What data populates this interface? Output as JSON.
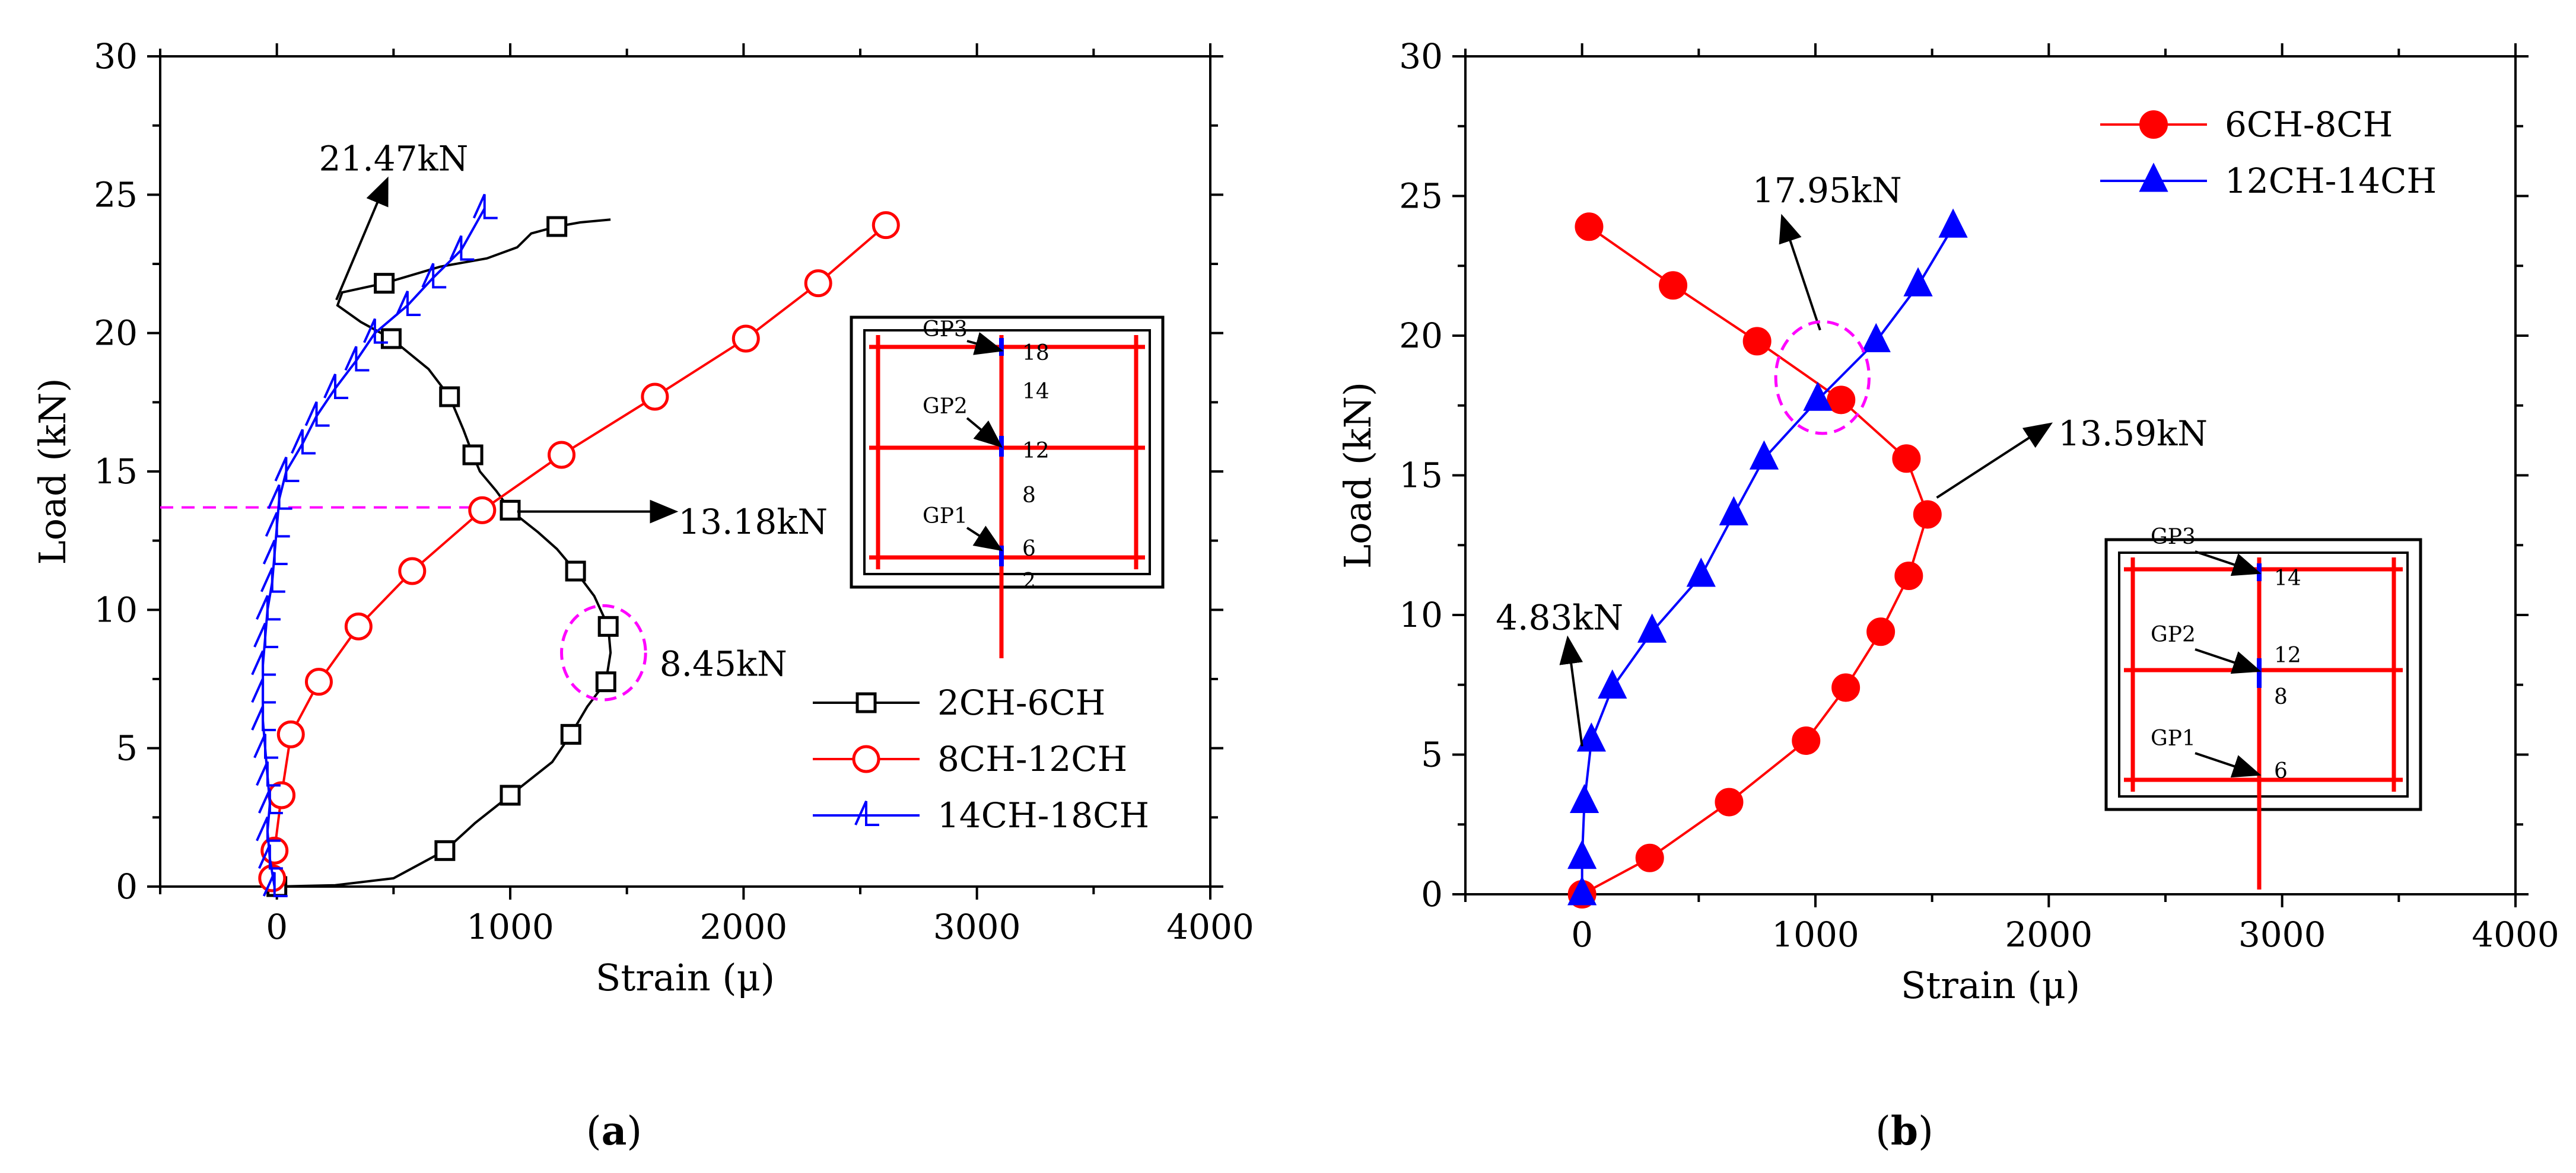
{
  "chart_data": [
    {
      "type": "line",
      "panel_label": "(a)",
      "panel_letter": "a",
      "xlabel": "Strain (μ)",
      "ylabel": "Load (kN)",
      "xlim": [
        -500,
        4000
      ],
      "ylim": [
        0,
        30
      ],
      "xticks": [
        0,
        1000,
        2000,
        3000,
        4000
      ],
      "yticks": [
        0,
        5,
        10,
        15,
        20,
        25,
        30
      ],
      "legend_position": "bottom-right",
      "series": [
        {
          "name": "2CH-6CH",
          "color": "#000000",
          "marker": "square",
          "points": [
            [
              0,
              0
            ],
            [
              250,
              0.05
            ],
            [
              500,
              0.3
            ],
            [
              720,
              1.3
            ],
            [
              850,
              2.3
            ],
            [
              1000,
              3.3
            ],
            [
              1180,
              4.5
            ],
            [
              1260,
              5.5
            ],
            [
              1330,
              6.5
            ],
            [
              1410,
              7.4
            ],
            [
              1430,
              8.45
            ],
            [
              1420,
              9.4
            ],
            [
              1360,
              10.5
            ],
            [
              1280,
              11.4
            ],
            [
              1200,
              12.2
            ],
            [
              1120,
              12.8
            ],
            [
              1000,
              13.6
            ],
            [
              940,
              14.3
            ],
            [
              870,
              15
            ],
            [
              840,
              15.6
            ],
            [
              800,
              16.5
            ],
            [
              740,
              17.7
            ],
            [
              650,
              18.7
            ],
            [
              490,
              19.8
            ],
            [
              360,
              20.4
            ],
            [
              260,
              21.0
            ],
            [
              280,
              21.47
            ],
            [
              460,
              21.8
            ],
            [
              700,
              22.4
            ],
            [
              900,
              22.7
            ],
            [
              1030,
              23.1
            ],
            [
              1090,
              23.6
            ],
            [
              1200,
              23.85
            ],
            [
              1300,
              24.0
            ],
            [
              1430,
              24.1
            ]
          ],
          "marker_points": [
            [
              0,
              0
            ],
            [
              720,
              1.3
            ],
            [
              1000,
              3.3
            ],
            [
              1260,
              5.5
            ],
            [
              1410,
              7.4
            ],
            [
              1420,
              9.4
            ],
            [
              1280,
              11.4
            ],
            [
              1000,
              13.6
            ],
            [
              840,
              15.6
            ],
            [
              740,
              17.7
            ],
            [
              490,
              19.8
            ],
            [
              460,
              21.8
            ],
            [
              1200,
              23.85
            ]
          ]
        },
        {
          "name": "8CH-12CH",
          "color": "#ff0000",
          "marker": "circle",
          "points": [
            [
              -20,
              0.3
            ],
            [
              -10,
              1.3
            ],
            [
              20,
              3.3
            ],
            [
              60,
              5.5
            ],
            [
              180,
              7.4
            ],
            [
              350,
              9.4
            ],
            [
              580,
              11.4
            ],
            [
              880,
              13.6
            ],
            [
              1220,
              15.6
            ],
            [
              1620,
              17.7
            ],
            [
              2010,
              19.8
            ],
            [
              2320,
              21.8
            ],
            [
              2610,
              23.9
            ]
          ],
          "marker_points": [
            [
              -20,
              0.3
            ],
            [
              -10,
              1.3
            ],
            [
              20,
              3.3
            ],
            [
              60,
              5.5
            ],
            [
              180,
              7.4
            ],
            [
              350,
              9.4
            ],
            [
              580,
              11.4
            ],
            [
              880,
              13.6
            ],
            [
              1220,
              15.6
            ],
            [
              1620,
              17.7
            ],
            [
              2010,
              19.8
            ],
            [
              2320,
              21.8
            ],
            [
              2610,
              23.9
            ]
          ]
        },
        {
          "name": "14CH-18CH",
          "color": "#0000ff",
          "marker": "tri-right",
          "points": [
            [
              -10,
              0
            ],
            [
              -30,
              1
            ],
            [
              -40,
              2
            ],
            [
              -30,
              3
            ],
            [
              -40,
              4
            ],
            [
              -50,
              5
            ],
            [
              -60,
              6
            ],
            [
              -60,
              7
            ],
            [
              -60,
              8
            ],
            [
              -50,
              9
            ],
            [
              -40,
              10
            ],
            [
              -20,
              11
            ],
            [
              -10,
              12
            ],
            [
              0,
              13
            ],
            [
              10,
              14
            ],
            [
              40,
              15
            ],
            [
              110,
              16
            ],
            [
              170,
              17
            ],
            [
              250,
              18
            ],
            [
              340,
              19
            ],
            [
              420,
              20
            ],
            [
              560,
              21
            ],
            [
              670,
              22
            ],
            [
              790,
              23
            ],
            [
              890,
              24.5
            ]
          ],
          "marker_points": [
            [
              -10,
              0
            ],
            [
              -30,
              1
            ],
            [
              -40,
              2
            ],
            [
              -30,
              3
            ],
            [
              -40,
              4
            ],
            [
              -50,
              5
            ],
            [
              -60,
              6
            ],
            [
              -60,
              7
            ],
            [
              -60,
              8
            ],
            [
              -50,
              9
            ],
            [
              -40,
              10
            ],
            [
              -20,
              11
            ],
            [
              -10,
              12
            ],
            [
              0,
              13
            ],
            [
              10,
              14
            ],
            [
              40,
              15
            ],
            [
              110,
              16
            ],
            [
              170,
              17
            ],
            [
              250,
              18
            ],
            [
              340,
              19
            ],
            [
              420,
              20
            ],
            [
              560,
              21
            ],
            [
              670,
              22
            ],
            [
              790,
              23
            ],
            [
              890,
              24.5
            ]
          ]
        }
      ],
      "annotations": [
        {
          "text": "21.47kN",
          "type": "arrow",
          "from": [
            255,
            21.2
          ],
          "to": [
            470,
            25.5
          ],
          "text_at": [
            180,
            26.3
          ]
        },
        {
          "text": "13.18kN",
          "type": "arrow",
          "from": [
            1030,
            13.55
          ],
          "to": [
            1700,
            13.55
          ],
          "text_at": [
            1720,
            13.18
          ]
        },
        {
          "text": "8.45kN",
          "type": "circle",
          "center": [
            1400,
            8.45
          ],
          "radius_x": 180,
          "radius_y": 1.7,
          "text_at": [
            1640,
            8.05
          ]
        },
        {
          "text": "",
          "type": "dashed-hline",
          "y": 13.7,
          "x_from": -500,
          "x_to": 880
        }
      ],
      "inset": {
        "labels": [
          "GP3",
          "GP2",
          "GP1"
        ],
        "gauge_numbers": [
          "18",
          "14",
          "12",
          "8",
          "6",
          "2"
        ]
      }
    },
    {
      "type": "line",
      "panel_label": "(b)",
      "panel_letter": "b",
      "xlabel": "Strain (μ)",
      "ylabel": "Load (kN)",
      "xlim": [
        -500,
        4000
      ],
      "ylim": [
        0,
        30
      ],
      "xticks": [
        0,
        1000,
        2000,
        3000,
        4000
      ],
      "yticks": [
        0,
        5,
        10,
        15,
        20,
        25,
        30
      ],
      "legend_position": "top-right",
      "series": [
        {
          "name": "6CH-8CH",
          "color": "#ff0000",
          "marker": "filled-circle",
          "points": [
            [
              0,
              0
            ],
            [
              290,
              1.3
            ],
            [
              630,
              3.3
            ],
            [
              960,
              5.5
            ],
            [
              1130,
              7.4
            ],
            [
              1280,
              9.4
            ],
            [
              1400,
              11.4
            ],
            [
              1480,
              13.6
            ],
            [
              1390,
              15.6
            ],
            [
              1110,
              17.7
            ],
            [
              750,
              19.8
            ],
            [
              390,
              21.8
            ],
            [
              30,
              23.9
            ]
          ],
          "marker_points": [
            [
              0,
              0
            ],
            [
              290,
              1.3
            ],
            [
              630,
              3.3
            ],
            [
              960,
              5.5
            ],
            [
              1130,
              7.4
            ],
            [
              1280,
              9.4
            ],
            [
              1400,
              11.4
            ],
            [
              1480,
              13.6
            ],
            [
              1390,
              15.6
            ],
            [
              1110,
              17.7
            ],
            [
              750,
              19.8
            ],
            [
              390,
              21.8
            ],
            [
              30,
              23.9
            ]
          ]
        },
        {
          "name": "12CH-14CH",
          "color": "#0000ff",
          "marker": "filled-triangle",
          "points": [
            [
              0,
              0
            ],
            [
              0,
              1.3
            ],
            [
              10,
              3.3
            ],
            [
              40,
              5.5
            ],
            [
              130,
              7.4
            ],
            [
              300,
              9.4
            ],
            [
              510,
              11.4
            ],
            [
              650,
              13.6
            ],
            [
              780,
              15.6
            ],
            [
              1010,
              17.7
            ],
            [
              1260,
              19.8
            ],
            [
              1440,
              21.8
            ],
            [
              1590,
              23.9
            ]
          ],
          "marker_points": [
            [
              0,
              0
            ],
            [
              0,
              1.3
            ],
            [
              10,
              3.3
            ],
            [
              40,
              5.5
            ],
            [
              130,
              7.4
            ],
            [
              300,
              9.4
            ],
            [
              510,
              11.4
            ],
            [
              650,
              13.6
            ],
            [
              780,
              15.6
            ],
            [
              1010,
              17.7
            ],
            [
              1260,
              19.8
            ],
            [
              1440,
              21.8
            ],
            [
              1590,
              23.9
            ]
          ]
        }
      ],
      "annotations": [
        {
          "text": "17.95kN",
          "type": "arrow",
          "from": [
            1020,
            20.2
          ],
          "to": [
            860,
            24.2
          ],
          "text_at": [
            730,
            25.2
          ]
        },
        {
          "text": "",
          "type": "circle",
          "center": [
            1030,
            18.5
          ],
          "radius_x": 200,
          "radius_y": 2.0
        },
        {
          "text": "13.59kN",
          "type": "arrow",
          "from": [
            1520,
            14.2
          ],
          "to": [
            2000,
            16.8
          ],
          "text_at": [
            2040,
            16.5
          ]
        },
        {
          "text": "4.83kN",
          "type": "arrow",
          "from": [
            0,
            5.3
          ],
          "to": [
            -60,
            9.1
          ],
          "text_at": [
            -370,
            9.9
          ]
        }
      ],
      "inset": {
        "labels": [
          "GP3",
          "GP2",
          "GP1"
        ],
        "gauge_numbers": [
          "14",
          "12",
          "8",
          "6"
        ]
      }
    }
  ]
}
